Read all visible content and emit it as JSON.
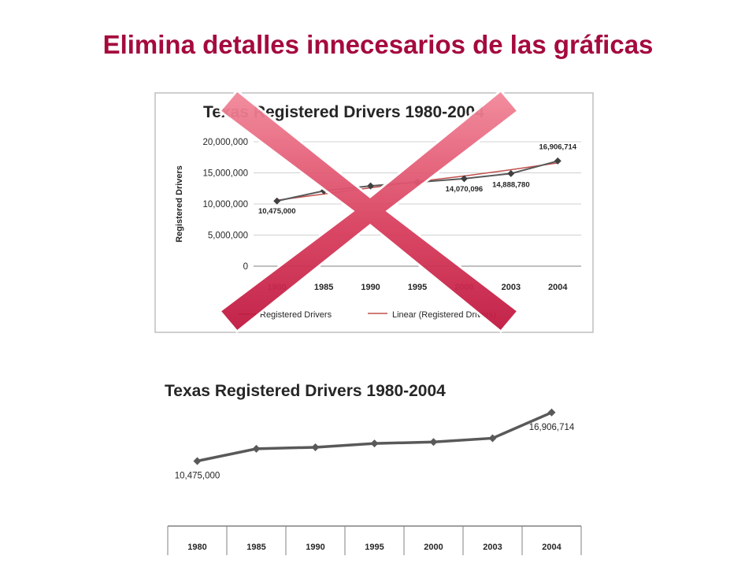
{
  "slide": {
    "title": "Elimina detalles innecesarios de las gráficas"
  },
  "colors": {
    "title": "#a50a3c",
    "series_line": "#595959",
    "trend_line": "#c0504d",
    "cross": "#d9415f"
  },
  "chart_data": [
    {
      "type": "line",
      "title": "Texas Registered Drivers 1980-2004",
      "ylabel": "Registered Drivers",
      "xlabel": "",
      "categories": [
        "1980",
        "1985",
        "1990",
        "1995",
        "2000",
        "2003",
        "2004"
      ],
      "yticks": [
        "20,000,000",
        "15,000,000",
        "10,000,000",
        "5,000,000",
        "0"
      ],
      "ylim": [
        0,
        20000000
      ],
      "grid": true,
      "legend_position": "bottom",
      "series": [
        {
          "name": "Registered Drivers",
          "values": [
            10475000,
            12100000,
            12900000,
            13500000,
            14070096,
            14888780,
            16906714
          ]
        },
        {
          "name": "Linear (Registered Drivers)",
          "values": [
            10600000,
            11600000,
            12600000,
            13600000,
            14500000,
            15500000,
            16600000
          ]
        }
      ],
      "data_labels": [
        "10,475,000",
        "14,070,096",
        "14,888,780",
        "16,906,714"
      ],
      "crossed_out": true
    },
    {
      "type": "line",
      "title": "Texas Registered Drivers 1980-2004",
      "categories": [
        "1980",
        "1985",
        "1990",
        "1995",
        "2000",
        "2003",
        "2004"
      ],
      "grid": false,
      "series": [
        {
          "name": "",
          "values": [
            10475000,
            12100000,
            12300000,
            12800000,
            13000000,
            13500000,
            16906714
          ]
        }
      ],
      "data_labels": [
        "10,475,000",
        "16,906,714"
      ]
    }
  ]
}
